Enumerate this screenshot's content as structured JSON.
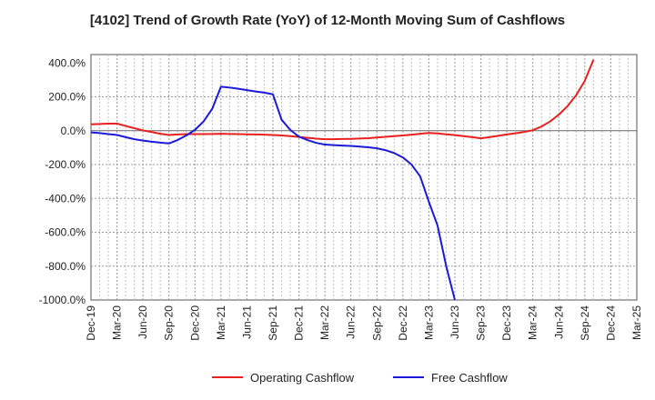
{
  "chart_data": {
    "type": "line",
    "title": "[4102]  Trend of Growth Rate (YoY) of 12-Month Moving Sum of Cashflows",
    "xlabel": "",
    "ylabel": "",
    "ylim": [
      -1000,
      450
    ],
    "y_ticks": [
      400,
      200,
      0,
      -200,
      -400,
      -600,
      -800,
      -1000
    ],
    "y_tick_labels": [
      "400.0%",
      "200.0%",
      "0.0%",
      "-200.0%",
      "-400.0%",
      "-600.0%",
      "-800.0%",
      "-1000.0%"
    ],
    "x_tick_labels": [
      "Dec-19",
      "Mar-20",
      "Jun-20",
      "Sep-20",
      "Dec-20",
      "Mar-21",
      "Jun-21",
      "Sep-21",
      "Dec-21",
      "Mar-22",
      "Jun-22",
      "Sep-22",
      "Dec-22",
      "Mar-23",
      "Jun-23",
      "Sep-23",
      "Dec-23",
      "Mar-24",
      "Jun-24",
      "Sep-24",
      "Dec-24",
      "Mar-25"
    ],
    "grid": true,
    "legend_position": "bottom",
    "series": [
      {
        "name": "Operating Cashflow",
        "color": "#e8201e",
        "points": [
          [
            "Dec-19",
            38
          ],
          [
            "Jan-20",
            40
          ],
          [
            "Feb-20",
            42
          ],
          [
            "Mar-20",
            42
          ],
          [
            "Apr-20",
            28
          ],
          [
            "May-20",
            15
          ],
          [
            "Jun-20",
            2
          ],
          [
            "Jul-20",
            -8
          ],
          [
            "Aug-20",
            -18
          ],
          [
            "Sep-20",
            -25
          ],
          [
            "Oct-20",
            -22
          ],
          [
            "Nov-20",
            -20
          ],
          [
            "Dec-20",
            -20
          ],
          [
            "Jan-21",
            -20
          ],
          [
            "Feb-21",
            -19
          ],
          [
            "Mar-21",
            -18
          ],
          [
            "Apr-21",
            -19
          ],
          [
            "May-21",
            -20
          ],
          [
            "Jun-21",
            -21
          ],
          [
            "Jul-21",
            -22
          ],
          [
            "Aug-21",
            -23
          ],
          [
            "Sep-21",
            -25
          ],
          [
            "Oct-21",
            -28
          ],
          [
            "Nov-21",
            -32
          ],
          [
            "Dec-21",
            -37
          ],
          [
            "Jan-22",
            -42
          ],
          [
            "Feb-22",
            -47
          ],
          [
            "Mar-22",
            -50
          ],
          [
            "Apr-22",
            -50
          ],
          [
            "May-22",
            -49
          ],
          [
            "Jun-22",
            -48
          ],
          [
            "Jul-22",
            -46
          ],
          [
            "Aug-22",
            -44
          ],
          [
            "Sep-22",
            -40
          ],
          [
            "Oct-22",
            -36
          ],
          [
            "Nov-22",
            -32
          ],
          [
            "Dec-22",
            -28
          ],
          [
            "Jan-23",
            -23
          ],
          [
            "Feb-23",
            -18
          ],
          [
            "Mar-23",
            -13
          ],
          [
            "Apr-23",
            -16
          ],
          [
            "May-23",
            -21
          ],
          [
            "Jun-23",
            -26
          ],
          [
            "Jul-23",
            -32
          ],
          [
            "Aug-23",
            -38
          ],
          [
            "Sep-23",
            -45
          ],
          [
            "Oct-23",
            -38
          ],
          [
            "Nov-23",
            -30
          ],
          [
            "Dec-23",
            -22
          ],
          [
            "Jan-24",
            -15
          ],
          [
            "Feb-24",
            -7
          ],
          [
            "Mar-24",
            3
          ],
          [
            "Apr-24",
            25
          ],
          [
            "May-24",
            55
          ],
          [
            "Jun-24",
            95
          ],
          [
            "Jul-24",
            145
          ],
          [
            "Aug-24",
            210
          ],
          [
            "Sep-24",
            295
          ],
          [
            "Oct-24",
            420
          ]
        ]
      },
      {
        "name": "Free Cashflow",
        "color": "#1a1ad8",
        "points": [
          [
            "Dec-19",
            -10
          ],
          [
            "Jan-20",
            -14
          ],
          [
            "Feb-20",
            -20
          ],
          [
            "Mar-20",
            -25
          ],
          [
            "Apr-20",
            -38
          ],
          [
            "May-20",
            -50
          ],
          [
            "Jun-20",
            -58
          ],
          [
            "Jul-20",
            -65
          ],
          [
            "Aug-20",
            -70
          ],
          [
            "Sep-20",
            -75
          ],
          [
            "Oct-20",
            -55
          ],
          [
            "Nov-20",
            -28
          ],
          [
            "Dec-20",
            5
          ],
          [
            "Jan-21",
            55
          ],
          [
            "Feb-21",
            130
          ],
          [
            "Mar-21",
            260
          ],
          [
            "Apr-21",
            255
          ],
          [
            "May-21",
            248
          ],
          [
            "Jun-21",
            240
          ],
          [
            "Jul-21",
            232
          ],
          [
            "Aug-21",
            225
          ],
          [
            "Sep-21",
            215
          ],
          [
            "Oct-21",
            65
          ],
          [
            "Nov-21",
            5
          ],
          [
            "Dec-21",
            -35
          ],
          [
            "Jan-22",
            -55
          ],
          [
            "Feb-22",
            -72
          ],
          [
            "Mar-22",
            -82
          ],
          [
            "Apr-22",
            -85
          ],
          [
            "May-22",
            -88
          ],
          [
            "Jun-22",
            -90
          ],
          [
            "Jul-22",
            -94
          ],
          [
            "Aug-22",
            -98
          ],
          [
            "Sep-22",
            -104
          ],
          [
            "Oct-22",
            -115
          ],
          [
            "Nov-22",
            -132
          ],
          [
            "Dec-22",
            -158
          ],
          [
            "Jan-23",
            -200
          ],
          [
            "Feb-23",
            -270
          ],
          [
            "Mar-23",
            -420
          ],
          [
            "Apr-23",
            -560
          ],
          [
            "May-23",
            -800
          ],
          [
            "Jun-23",
            -1000
          ]
        ]
      }
    ]
  }
}
